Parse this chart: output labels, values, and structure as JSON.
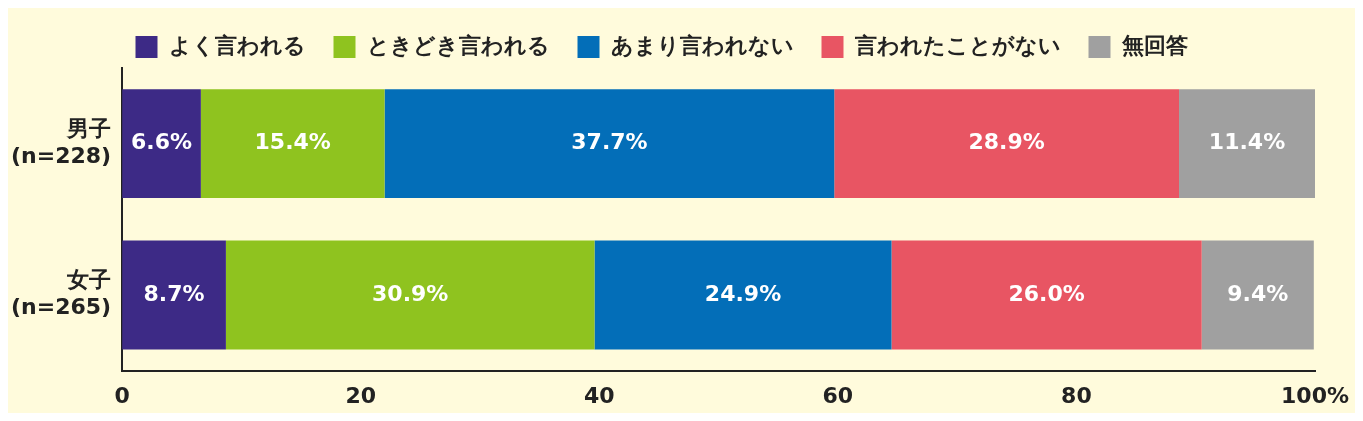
{
  "chart_data": {
    "type": "bar",
    "orientation": "horizontal",
    "stacked": true,
    "categories": [
      "男子 (n=228)",
      "女子 (n=265)"
    ],
    "series": [
      {
        "name": "よく言われる",
        "color": "#3d2a86",
        "values": [
          6.6,
          8.7
        ],
        "value_labels": [
          "6.6%",
          "8.7%"
        ]
      },
      {
        "name": "ときどき言われる",
        "color": "#8fc31f",
        "values": [
          15.4,
          30.9
        ],
        "value_labels": [
          "15.4%",
          "30.9%"
        ]
      },
      {
        "name": "あまり言われない",
        "color": "#036eb8",
        "values": [
          37.7,
          24.9
        ],
        "value_labels": [
          "37.7%",
          "24.9%"
        ]
      },
      {
        "name": "言われたことがない",
        "color": "#e85563",
        "values": [
          28.9,
          26.0
        ],
        "value_labels": [
          "28.9%",
          "26.0%"
        ]
      },
      {
        "name": "無回答",
        "color": "#a0a0a0",
        "values": [
          11.4,
          9.4
        ],
        "value_labels": [
          "11.4%",
          "9.4%"
        ]
      }
    ],
    "xlim": [
      0,
      100
    ],
    "xticks": [
      0,
      20,
      40,
      60,
      80,
      {
        "value": 100,
        "label": "100%"
      }
    ],
    "grid": false,
    "legend": "top"
  }
}
